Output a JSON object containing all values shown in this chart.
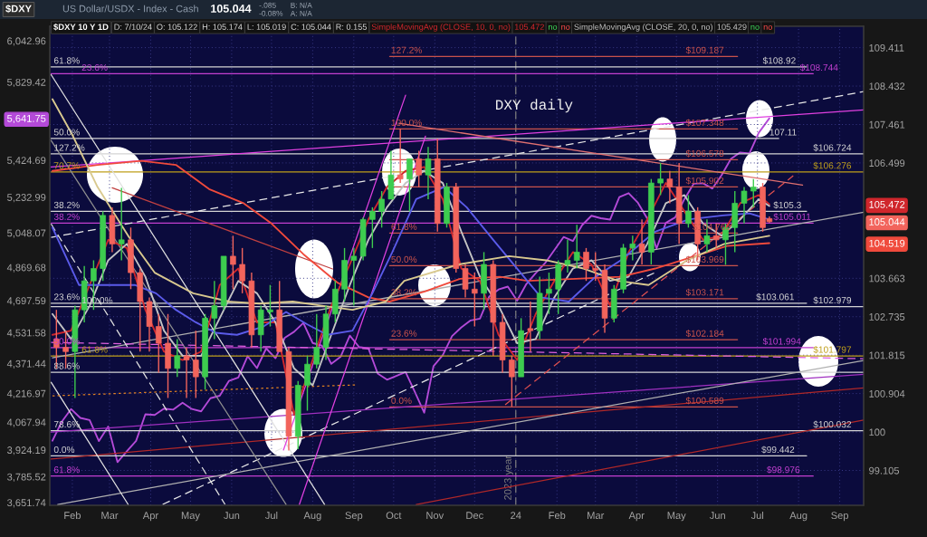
{
  "chart_data": {
    "type": "candlestick",
    "title": "DXY daily",
    "subtitle": "US Dollar/USDX - Index - Cash",
    "x": [
      "2023-01-20",
      "2023-01-27",
      "2023-02-03",
      "2023-02-10",
      "2023-02-17",
      "2023-02-24",
      "2023-03-03",
      "2023-03-10",
      "2023-03-17",
      "2023-03-24",
      "2023-03-31",
      "2023-04-07",
      "2023-04-14",
      "2023-04-21",
      "2023-04-28",
      "2023-05-05",
      "2023-05-12",
      "2023-05-19",
      "2023-05-26",
      "2023-06-02",
      "2023-06-09",
      "2023-06-16",
      "2023-06-23",
      "2023-06-30",
      "2023-07-07",
      "2023-07-14",
      "2023-07-21",
      "2023-07-28",
      "2023-08-04",
      "2023-08-11",
      "2023-08-18",
      "2023-08-25",
      "2023-09-01",
      "2023-09-08",
      "2023-09-15",
      "2023-09-22",
      "2023-09-29",
      "2023-10-06",
      "2023-10-13",
      "2023-10-20",
      "2023-10-27",
      "2023-11-03",
      "2023-11-10",
      "2023-11-17",
      "2023-11-24",
      "2023-12-01",
      "2023-12-08",
      "2023-12-15",
      "2023-12-22",
      "2023-12-29",
      "2024-01-05",
      "2024-01-12",
      "2024-01-19",
      "2024-01-26",
      "2024-02-02",
      "2024-02-09",
      "2024-02-16",
      "2024-02-23",
      "2024-03-01",
      "2024-03-08",
      "2024-03-15",
      "2024-03-22",
      "2024-03-29",
      "2024-04-05",
      "2024-04-12",
      "2024-04-19",
      "2024-04-26",
      "2024-05-03",
      "2024-05-10",
      "2024-05-17",
      "2024-05-24",
      "2024-05-31",
      "2024-06-07",
      "2024-06-14",
      "2024-06-21",
      "2024-06-28",
      "2024-07-05",
      "2024-07-10"
    ],
    "ohlc": [
      [
        102.2,
        102.9,
        101.5,
        102.0
      ],
      [
        102.0,
        102.4,
        101.5,
        101.9
      ],
      [
        101.9,
        103.0,
        100.8,
        102.9
      ],
      [
        102.9,
        103.96,
        102.6,
        103.6
      ],
      [
        103.6,
        104.1,
        102.9,
        103.9
      ],
      [
        103.9,
        105.3,
        103.6,
        105.2
      ],
      [
        105.2,
        105.4,
        104.3,
        104.5
      ],
      [
        104.5,
        105.88,
        104.1,
        104.6
      ],
      [
        104.6,
        104.9,
        103.4,
        103.8
      ],
      [
        103.8,
        103.9,
        101.9,
        103.1
      ],
      [
        103.1,
        103.2,
        101.9,
        102.5
      ],
      [
        102.5,
        102.8,
        101.4,
        102.1
      ],
      [
        102.1,
        102.8,
        100.8,
        101.5
      ],
      [
        101.5,
        102.2,
        101.3,
        101.8
      ],
      [
        101.8,
        102.0,
        100.8,
        101.7
      ],
      [
        101.7,
        102.4,
        100.8,
        101.3
      ],
      [
        101.3,
        102.8,
        101.0,
        102.7
      ],
      [
        102.7,
        103.6,
        102.2,
        103.0
      ],
      [
        103.0,
        104.2,
        102.9,
        104.2
      ],
      [
        104.2,
        104.7,
        103.4,
        104.0
      ],
      [
        104.0,
        104.4,
        103.3,
        103.6
      ],
      [
        103.6,
        103.8,
        102.0,
        102.3
      ],
      [
        102.3,
        103.0,
        101.9,
        102.9
      ],
      [
        102.85,
        103.5,
        102.5,
        102.9
      ],
      [
        102.9,
        103.6,
        101.9,
        101.9
      ],
      [
        101.9,
        102.0,
        99.57,
        99.9
      ],
      [
        99.9,
        101.2,
        99.6,
        101.1
      ],
      [
        101.1,
        101.8,
        100.5,
        101.6
      ],
      [
        101.6,
        102.8,
        101.5,
        102.0
      ],
      [
        102.0,
        103.0,
        101.7,
        102.8
      ],
      [
        102.8,
        103.6,
        102.6,
        103.4
      ],
      [
        103.4,
        104.4,
        103.1,
        104.1
      ],
      [
        104.1,
        104.4,
        103.0,
        104.2
      ],
      [
        104.2,
        105.15,
        104.1,
        105.1
      ],
      [
        105.1,
        105.4,
        104.4,
        105.3
      ],
      [
        105.3,
        105.8,
        104.9,
        105.6
      ],
      [
        105.6,
        106.8,
        105.6,
        106.2
      ],
      [
        106.2,
        107.35,
        106.0,
        106.1
      ],
      [
        106.1,
        106.6,
        105.3,
        106.6
      ],
      [
        106.6,
        106.8,
        105.9,
        106.2
      ],
      [
        106.2,
        106.9,
        105.6,
        106.6
      ],
      [
        106.6,
        107.1,
        104.8,
        105.0
      ],
      [
        105.0,
        106.0,
        104.9,
        105.9
      ],
      [
        105.9,
        106.0,
        103.8,
        103.9
      ],
      [
        103.9,
        104.0,
        103.2,
        103.4
      ],
      [
        103.4,
        103.8,
        102.5,
        103.3
      ],
      [
        103.3,
        104.3,
        102.9,
        104.0
      ],
      [
        104.0,
        104.1,
        101.8,
        102.6
      ],
      [
        102.6,
        102.8,
        101.4,
        101.7
      ],
      [
        101.7,
        101.8,
        100.6,
        101.3
      ],
      [
        101.3,
        102.7,
        101.3,
        102.4
      ],
      [
        102.45,
        103.1,
        101.9,
        102.4
      ],
      [
        102.4,
        103.7,
        102.2,
        103.3
      ],
      [
        103.3,
        103.8,
        102.8,
        103.4
      ],
      [
        103.4,
        104.1,
        102.8,
        104.0
      ],
      [
        104.0,
        104.6,
        103.8,
        104.1
      ],
      [
        104.1,
        104.97,
        103.9,
        104.3
      ],
      [
        104.3,
        104.4,
        103.6,
        103.9
      ],
      [
        103.9,
        104.3,
        103.6,
        103.86
      ],
      [
        103.86,
        104.0,
        102.35,
        102.7
      ],
      [
        102.7,
        103.5,
        102.6,
        103.4
      ],
      [
        103.4,
        104.5,
        103.3,
        104.4
      ],
      [
        104.4,
        104.7,
        104.1,
        104.5
      ],
      [
        104.5,
        105.1,
        104.0,
        104.3
      ],
      [
        104.3,
        106.1,
        104.0,
        106.0
      ],
      [
        106.0,
        106.5,
        105.7,
        106.1
      ],
      [
        106.1,
        106.3,
        105.5,
        105.9
      ],
      [
        105.9,
        106.5,
        104.5,
        105.0
      ],
      [
        105.0,
        105.7,
        104.9,
        105.3
      ],
      [
        105.3,
        105.4,
        104.1,
        104.5
      ],
      [
        104.5,
        105.1,
        104.3,
        104.7
      ],
      [
        104.7,
        105.0,
        104.4,
        104.6
      ],
      [
        104.6,
        105.0,
        103.99,
        104.9
      ],
      [
        104.9,
        105.8,
        104.3,
        105.5
      ],
      [
        105.5,
        105.9,
        105.0,
        105.8
      ],
      [
        105.8,
        106.1,
        105.4,
        105.9
      ],
      [
        105.9,
        106.0,
        104.8,
        104.9
      ],
      [
        105.122,
        105.174,
        105.019,
        105.044
      ]
    ],
    "colors": [
      "#f2645c",
      "#f2645c",
      "#3dcc4f",
      "#3dcc4f",
      "#3dcc4f",
      "#3dcc4f",
      "#f2645c",
      "#3dcc4f",
      "#f2645c",
      "#f2645c",
      "#f2645c",
      "#f2645c",
      "#f2645c",
      "#3dcc4f",
      "#f2645c",
      "#f2645c",
      "#3dcc4f",
      "#3dcc4f",
      "#3dcc4f",
      "#f2645c",
      "#f2645c",
      "#f2645c",
      "#3dcc4f",
      "#3dcc4f",
      "#f2645c",
      "#f2645c",
      "#3dcc4f",
      "#3dcc4f",
      "#3dcc4f",
      "#3dcc4f",
      "#3dcc4f",
      "#3dcc4f",
      "#3dcc4f",
      "#3dcc4f",
      "#3dcc4f",
      "#3dcc4f",
      "#3dcc4f",
      "#f2645c",
      "#3dcc4f",
      "#f2645c",
      "#3dcc4f",
      "#f2645c",
      "#3dcc4f",
      "#f2645c",
      "#f2645c",
      "#f2645c",
      "#3dcc4f",
      "#f2645c",
      "#f2645c",
      "#f2645c",
      "#3dcc4f",
      "#f2645c",
      "#3dcc4f",
      "#3dcc4f",
      "#3dcc4f",
      "#3dcc4f",
      "#3dcc4f",
      "#f2645c",
      "#f2645c",
      "#f2645c",
      "#3dcc4f",
      "#3dcc4f",
      "#3dcc4f",
      "#f2645c",
      "#3dcc4f",
      "#3dcc4f",
      "#f2645c",
      "#f2645c",
      "#3dcc4f",
      "#f2645c",
      "#3dcc4f",
      "#f2645c",
      "#3dcc4f",
      "#3dcc4f",
      "#3dcc4f",
      "#3dcc4f",
      "#f2645c",
      "#f2645c"
    ],
    "series": [
      {
        "type": "line",
        "name": "SimpleMovingAvg (CLOSE, 10, 0, no)",
        "color": "#d0262c",
        "x": [
          "2023-01-17",
          "2023-01-31",
          "2023-02-14",
          "2023-02-28",
          "2023-03-14",
          "2023-03-28",
          "2023-04-11",
          "2023-04-25",
          "2023-05-09",
          "2023-05-23",
          "2023-06-06",
          "2023-06-20",
          "2023-07-04",
          "2023-07-18",
          "2023-08-01",
          "2023-08-15",
          "2023-08-29",
          "2023-09-12",
          "2023-09-26",
          "2023-10-10",
          "2023-10-24",
          "2023-11-07",
          "2023-11-21",
          "2023-12-05",
          "2023-12-19",
          "2024-01-02",
          "2024-01-16",
          "2024-01-30",
          "2024-02-13",
          "2024-02-27",
          "2024-03-12",
          "2024-03-26",
          "2024-04-09",
          "2024-04-23",
          "2024-05-07",
          "2024-05-21",
          "2024-06-04",
          "2024-06-18",
          "2024-07-02",
          "2024-07-10"
        ],
        "values": [
          102.3,
          102.4,
          103.5,
          104.6,
          104.4,
          102.9,
          101.9,
          101.7,
          101.9,
          103.5,
          103.9,
          102.6,
          102.6,
          100.4,
          101.7,
          103.0,
          104.0,
          105.1,
          105.9,
          106.3,
          106.4,
          105.6,
          103.9,
          103.6,
          102.3,
          101.7,
          102.8,
          103.6,
          104.3,
          104.0,
          103.0,
          104.3,
          105.1,
          106.0,
          105.3,
          104.6,
          104.7,
          105.5,
          105.7,
          105.472
        ]
      },
      {
        "type": "line",
        "name": "SimpleMovingAvg (CLOSE, 20, 0, no)",
        "color": "#c4c4c4",
        "x": [
          "2023-01-17",
          "2023-01-31",
          "2023-02-14",
          "2023-02-28",
          "2023-03-14",
          "2023-03-28",
          "2023-04-11",
          "2023-04-25",
          "2023-05-09",
          "2023-05-23",
          "2023-06-06",
          "2023-06-20",
          "2023-07-04",
          "2023-07-18",
          "2023-08-01",
          "2023-08-15",
          "2023-08-29",
          "2023-09-12",
          "2023-09-26",
          "2023-10-10",
          "2023-10-24",
          "2023-11-07",
          "2023-11-21",
          "2023-12-05",
          "2023-12-19",
          "2024-01-02",
          "2024-01-16",
          "2024-01-30",
          "2024-02-13",
          "2024-02-27",
          "2024-03-12",
          "2024-03-26",
          "2024-04-09",
          "2024-04-23",
          "2024-05-07",
          "2024-05-21",
          "2024-06-04",
          "2024-06-18",
          "2024-07-02",
          "2024-07-10"
        ],
        "values": [
          102.8,
          102.2,
          103.0,
          104.1,
          104.5,
          103.7,
          102.4,
          101.8,
          101.8,
          102.7,
          103.6,
          103.3,
          102.6,
          101.5,
          101.1,
          102.3,
          103.5,
          104.6,
          105.4,
          106.0,
          106.3,
          106.0,
          104.8,
          103.7,
          103.0,
          102.1,
          102.2,
          103.2,
          103.9,
          104.1,
          103.6,
          103.7,
          104.5,
          105.5,
          105.7,
          105.0,
          104.7,
          105.1,
          105.6,
          105.429
        ]
      },
      {
        "type": "line",
        "color": "#f04a3c",
        "x": [
          "2023-01-17",
          "2023-02-20",
          "2023-03-25",
          "2023-04-20",
          "2023-05-15",
          "2023-06-10",
          "2023-07-01",
          "2023-07-25",
          "2023-08-20",
          "2023-09-12",
          "2023-09-28",
          "2023-10-25",
          "2023-11-20",
          "2023-12-20",
          "2024-01-10",
          "2024-02-15",
          "2024-03-20",
          "2024-04-15",
          "2024-05-10",
          "2024-06-08",
          "2024-07-10"
        ],
        "values": [
          106.3,
          106.45,
          106.55,
          106.45,
          105.85,
          105.5,
          105.0,
          104.25,
          103.55,
          103.2,
          103.1,
          103.35,
          103.65,
          103.7,
          103.6,
          103.65,
          103.7,
          103.9,
          104.15,
          104.45,
          104.519
        ]
      },
      {
        "type": "line",
        "color": "#5b5bea",
        "x": [
          "2023-01-17",
          "2023-02-06",
          "2023-03-01",
          "2023-03-20",
          "2023-04-05",
          "2023-04-20",
          "2023-05-05",
          "2023-05-20",
          "2023-06-05",
          "2023-06-25",
          "2023-07-12",
          "2023-07-28",
          "2023-08-12",
          "2023-08-31",
          "2023-09-15",
          "2023-09-30",
          "2023-10-18",
          "2023-11-08",
          "2023-11-25",
          "2023-12-15",
          "2024-01-02",
          "2024-01-20",
          "2024-02-10",
          "2024-03-01",
          "2024-03-20",
          "2024-04-15",
          "2024-05-10",
          "2024-06-05",
          "2024-06-25",
          "2024-07-10"
        ],
        "values": [
          104.9,
          103.5,
          103.5,
          103.5,
          103.3,
          102.9,
          102.6,
          102.35,
          102.3,
          102.5,
          102.85,
          102.55,
          102.3,
          102.4,
          103.3,
          104.3,
          105.6,
          105.9,
          105.4,
          104.6,
          103.9,
          103.2,
          103.1,
          103.7,
          104.1,
          104.8,
          105.1,
          105.2,
          105.25,
          105.1
        ]
      },
      {
        "type": "line",
        "color": "#d9c98f",
        "x": [
          "2023-01-17",
          "2023-02-01",
          "2023-02-20",
          "2023-03-15",
          "2023-04-04",
          "2023-05-03",
          "2023-05-30",
          "2023-06-22",
          "2023-07-17",
          "2023-08-08",
          "2023-08-31",
          "2023-09-25",
          "2023-10-09",
          "2023-11-19",
          "2023-12-27",
          "2024-01-24",
          "2024-02-21",
          "2024-03-18",
          "2024-04-10",
          "2024-05-09",
          "2024-06-06",
          "2024-07-10"
        ],
        "values": [
          108.1,
          107.2,
          105.9,
          104.7,
          103.8,
          103.3,
          103.1,
          103.05,
          103.1,
          103.0,
          102.9,
          103.1,
          103.6,
          104.0,
          104.2,
          104.1,
          103.9,
          103.6,
          103.5,
          104.1,
          104.5,
          104.7
        ]
      },
      {
        "type": "line",
        "axis": "y2",
        "color": "#b44ad8",
        "x": [
          "2023-01-17",
          "2023-01-24",
          "2023-01-31",
          "2023-02-07",
          "2023-02-14",
          "2023-02-21",
          "2023-02-28",
          "2023-03-07",
          "2023-03-14",
          "2023-03-21",
          "2023-03-28",
          "2023-04-04",
          "2023-04-11",
          "2023-04-18",
          "2023-04-25",
          "2023-05-02",
          "2023-05-09",
          "2023-05-16",
          "2023-05-23",
          "2023-05-30",
          "2023-06-06",
          "2023-06-13",
          "2023-06-20",
          "2023-06-27",
          "2023-07-04",
          "2023-07-11",
          "2023-07-18",
          "2023-07-25",
          "2023-08-01",
          "2023-08-08",
          "2023-08-15",
          "2023-08-22",
          "2023-08-29",
          "2023-09-05",
          "2023-09-12",
          "2023-09-19",
          "2023-09-26",
          "2023-10-03",
          "2023-10-10",
          "2023-10-17",
          "2023-10-24",
          "2023-10-31",
          "2023-11-07",
          "2023-11-14",
          "2023-11-21",
          "2023-11-28",
          "2023-12-05",
          "2023-12-12",
          "2023-12-19",
          "2023-12-26",
          "2024-01-02",
          "2024-01-09",
          "2024-01-16",
          "2024-01-23",
          "2024-01-30",
          "2024-02-06",
          "2024-02-13",
          "2024-02-20",
          "2024-02-27",
          "2024-03-05",
          "2024-03-12",
          "2024-03-19",
          "2024-03-26",
          "2024-04-02",
          "2024-04-09",
          "2024-04-16",
          "2024-04-23",
          "2024-04-30",
          "2024-05-07",
          "2024-05-14",
          "2024-05-21",
          "2024-05-28",
          "2024-06-04",
          "2024-06-11",
          "2024-06-18",
          "2024-06-25",
          "2024-07-02",
          "2024-07-10"
        ],
        "values": [
          3972,
          4070,
          4136,
          4090,
          4079,
          3970,
          4045,
          3861,
          3917,
          3971,
          4109,
          4105,
          4138,
          4133,
          4169,
          4136,
          4124,
          4192,
          4205,
          4282,
          4299,
          4410,
          4348,
          4450,
          4399,
          4505,
          4536,
          4582,
          4478,
          4464,
          4370,
          4406,
          4516,
          4457,
          4450,
          4320,
          4288,
          4308,
          4327,
          4224,
          4117,
          4358,
          4415,
          4514,
          4559,
          4595,
          4604,
          4719,
          4755,
          4770,
          4697,
          4784,
          4840,
          4891,
          4959,
          5027,
          5006,
          5089,
          5137,
          5124,
          5117,
          5234,
          5254,
          5204,
          5123,
          4967,
          5100,
          5128,
          5223,
          5303,
          5305,
          5278,
          5347,
          5431,
          5465,
          5460,
          5567,
          5641.75
        ]
      },
      {
        "type": "line",
        "color": "#d4d4d4",
        "x": [
          "2023-01-16",
          "2024-08-07"
        ],
        "values": [
          108.92,
          108.92
        ]
      },
      {
        "type": "line",
        "color": "#d4d4d4",
        "x": [
          "2023-01-16",
          "2024-07-17"
        ],
        "values": [
          107.11,
          107.11
        ]
      },
      {
        "type": "line",
        "color": "#d4d4d4",
        "x": [
          "2023-01-16",
          "2024-09-19"
        ],
        "values": [
          106.724,
          106.724
        ]
      },
      {
        "type": "line",
        "color": "#d4d4d4",
        "x": [
          "2023-01-16",
          "2024-08-07"
        ],
        "values": [
          105.3,
          105.3
        ]
      },
      {
        "type": "line",
        "color": "#d4d4d4",
        "x": [
          "2023-01-16",
          "2024-08-07"
        ],
        "values": [
          103.061,
          103.061
        ]
      },
      {
        "type": "line",
        "color": "#d4d4d4",
        "x": [
          "2023-01-16",
          "2024-09-19"
        ],
        "values": [
          102.979,
          102.979
        ]
      },
      {
        "type": "line",
        "color": "#d4d4d4",
        "x": [
          "2023-01-16",
          "2024-09-19"
        ],
        "values": [
          101.409,
          101.409
        ]
      },
      {
        "type": "line",
        "color": "#d4d4d4",
        "x": [
          "2023-01-16",
          "2024-09-19"
        ],
        "values": [
          100.032,
          100.032
        ]
      },
      {
        "type": "line",
        "color": "#d4d4d4",
        "x": [
          "2023-01-16",
          "2024-08-07"
        ],
        "values": [
          99.442,
          99.442
        ]
      },
      {
        "type": "line",
        "color": "#c23fd0",
        "x": [
          "2023-01-16",
          "2024-08-12"
        ],
        "values": [
          108.744,
          108.744
        ]
      },
      {
        "type": "line",
        "color": "#c23fd0",
        "x": [
          "2023-01-16",
          "2024-08-12"
        ],
        "values": [
          105.011,
          105.011
        ]
      },
      {
        "type": "line",
        "color": "#c23fd0",
        "x": [
          "2023-01-16",
          "2024-08-12"
        ],
        "values": [
          101.994,
          101.994
        ]
      },
      {
        "type": "line",
        "color": "#c23fd0",
        "x": [
          "2023-01-16",
          "2024-08-12"
        ],
        "values": [
          98.976,
          98.976
        ]
      },
      {
        "type": "line",
        "color": "#bf9f1a",
        "x": [
          "2023-01-16",
          "2024-09-19"
        ],
        "values": [
          106.276,
          106.276
        ]
      },
      {
        "type": "line",
        "color": "#bf9f1a",
        "x": [
          "2023-01-16",
          "2024-09-19"
        ],
        "values": [
          101.797,
          101.797
        ]
      },
      {
        "type": "line",
        "color": "#c9524b",
        "x": [
          "2023-09-28",
          "2024-06-16"
        ],
        "values": [
          109.187,
          109.187
        ]
      },
      {
        "type": "line",
        "color": "#c9524b",
        "x": [
          "2023-09-28",
          "2024-06-16"
        ],
        "values": [
          107.348,
          107.348
        ]
      },
      {
        "type": "line",
        "color": "#c9524b",
        "x": [
          "2023-09-28",
          "2024-06-16"
        ],
        "values": [
          106.578,
          106.578
        ]
      },
      {
        "type": "line",
        "color": "#c9524b",
        "x": [
          "2023-09-28",
          "2024-06-16"
        ],
        "values": [
          105.902,
          105.902
        ]
      },
      {
        "type": "line",
        "color": "#c9524b",
        "x": [
          "2023-09-28",
          "2024-06-16"
        ],
        "values": [
          104.766,
          104.766
        ]
      },
      {
        "type": "line",
        "color": "#c9524b",
        "x": [
          "2023-09-28",
          "2024-06-16"
        ],
        "values": [
          103.969,
          103.969
        ]
      },
      {
        "type": "line",
        "color": "#c9524b",
        "x": [
          "2023-09-28",
          "2024-06-16"
        ],
        "values": [
          103.171,
          103.171
        ]
      },
      {
        "type": "line",
        "color": "#c9524b",
        "x": [
          "2023-09-28",
          "2024-06-16"
        ],
        "values": [
          102.184,
          102.184
        ]
      },
      {
        "type": "line",
        "color": "#c9524b",
        "x": [
          "2023-09-28",
          "2024-06-16"
        ],
        "values": [
          100.589,
          100.589
        ]
      },
      {
        "type": "line",
        "color": "#e8e8e8",
        "line_style": "dashed",
        "x": [
          "2023-01-16",
          "2024-09-19"
        ],
        "values": [
          104.66,
          108.29
        ]
      },
      {
        "type": "line",
        "color": "#e8e8e8",
        "line_style": "dashed",
        "x": [
          "2023-04-10",
          "2024-04-16"
        ],
        "values": [
          98.32,
          103.82
        ]
      },
      {
        "type": "line",
        "color": "#e05050",
        "line_style": "dashed",
        "x": [
          "2023-12-24",
          "2024-07-28"
        ],
        "values": [
          100.64,
          106.18
        ]
      },
      {
        "type": "line",
        "color": "#e040e0",
        "x": [
          "2023-01-16",
          "2024-09-19"
        ],
        "values": [
          106.4,
          107.83
        ]
      },
      {
        "type": "line",
        "color": "#a030c0",
        "x": [
          "2023-01-16",
          "2024-09-19"
        ],
        "values": [
          100.0,
          101.36
        ]
      },
      {
        "type": "line",
        "color": "#b02828",
        "x": [
          "2023-01-16",
          "2024-09-19"
        ],
        "values": [
          99.37,
          101.04
        ]
      },
      {
        "type": "line",
        "color": "#b02828",
        "x": [
          "2023-10-18",
          "2024-09-19"
        ],
        "values": [
          98.32,
          100.28
        ]
      },
      {
        "type": "line",
        "color": "#b0b0b0",
        "x": [
          "2023-01-21",
          "2024-09-19"
        ],
        "values": [
          98.32,
          101.69
        ]
      },
      {
        "type": "line",
        "color": "#b0b0b0",
        "x": [
          "2023-01-17",
          "2024-09-19"
        ],
        "values": [
          101.75,
          105.28
        ]
      },
      {
        "type": "line",
        "color": "#e0e0e0",
        "x": [
          "2023-01-16",
          "2023-08-10"
        ],
        "values": [
          108.72,
          98.32
        ]
      },
      {
        "type": "line",
        "color": "#e0e0e0",
        "x": [
          "2023-01-16",
          "2023-03-15"
        ],
        "values": [
          101.17,
          98.32
        ]
      },
      {
        "type": "line",
        "color": "#e0e0e0",
        "line_style": "dashed",
        "x": [
          "2023-01-16",
          "2023-05-27"
        ],
        "values": [
          104.99,
          98.32
        ]
      },
      {
        "type": "line",
        "color": "#909090",
        "x": [
          "2023-01-16",
          "2023-07-12"
        ],
        "values": [
          107.06,
          98.32
        ]
      },
      {
        "type": "line",
        "color": "#c04040",
        "x": [
          "2023-03-03",
          "2023-08-16"
        ],
        "values": [
          105.88,
          103.89
        ]
      },
      {
        "type": "line",
        "color": "#e07070",
        "x": [
          "2023-10-05",
          "2024-08-04"
        ],
        "values": [
          107.49,
          105.95
        ]
      },
      {
        "type": "line",
        "color": "#e040e0",
        "x": [
          "2023-07-10",
          "2023-10-10"
        ],
        "values": [
          99.58,
          108.2
        ]
      },
      {
        "type": "line",
        "color": "#e040e0",
        "x": [
          "2023-07-22",
          "2023-10-25"
        ],
        "values": [
          98.32,
          107.17
        ]
      },
      {
        "type": "line",
        "color": "#e08020",
        "line_style": "dotted",
        "x": [
          "2023-01-17",
          "2023-09-03"
        ],
        "values": [
          100.85,
          101.11
        ]
      },
      {
        "type": "line",
        "color": "#e060e0",
        "line_style": "dashed",
        "x": [
          "2023-01-16",
          "2024-09-19"
        ],
        "values": [
          102.12,
          101.73
        ]
      }
    ],
    "annotations": [
      "$DXY",
      "105.044",
      "-.085",
      "-0.08%",
      "B: N/A",
      "A: N/A",
      "$DXY 10 Y 1D",
      "D: 7/10/24",
      "O: 105.122",
      "H: 105.174",
      "L: 105.019",
      "C: 105.044",
      "R: 0.155",
      "105.472",
      "no",
      "no",
      "105.429",
      "no",
      "no",
      {
        "text": "61.8%",
        "x": "2023-01-18",
        "y": 108.92
      },
      {
        "text": "23.6%",
        "x": "2023-02-08",
        "y": 108.744
      },
      {
        "text": "50.0%",
        "x": "2023-01-18",
        "y": 107.11
      },
      {
        "text": "127.2%",
        "x": "2023-01-18",
        "y": 106.724
      },
      {
        "text": "70.7%",
        "x": "2023-01-18",
        "y": 106.276
      },
      {
        "text": "38.2%",
        "x": "2023-01-18",
        "y": 105.3
      },
      {
        "text": "38.2%",
        "x": "2023-01-18",
        "y": 105.011
      },
      {
        "text": "23.6%",
        "x": "2023-01-18",
        "y": 103.061
      },
      {
        "text": "100.0%",
        "x": "2023-02-08",
        "y": 102.979
      },
      {
        "text": "50.0%",
        "x": "2023-01-18",
        "y": 101.994
      },
      {
        "text": "61.8%",
        "x": "2023-02-08",
        "y": 101.797
      },
      {
        "text": "88.6%",
        "x": "2023-01-18",
        "y": 101.409
      },
      {
        "text": "78.6%",
        "x": "2023-01-18",
        "y": 100.032
      },
      {
        "text": "0.0%",
        "x": "2023-01-18",
        "y": 99.442
      },
      {
        "text": "61.8%",
        "x": "2023-01-18",
        "y": 98.976
      },
      {
        "text": "$108.92",
        "x": "2024-07-05",
        "y": 108.92
      },
      {
        "text": "$108.744",
        "x": "2024-08-02",
        "y": 108.744
      },
      {
        "text": "107.11",
        "x": "2024-07-10",
        "y": 107.11
      },
      {
        "text": "$106.724",
        "x": "2024-08-12",
        "y": 106.724
      },
      {
        "text": "$106.276",
        "x": "2024-08-12",
        "y": 106.276
      },
      {
        "text": "$105.3",
        "x": "2024-07-13",
        "y": 105.3
      },
      {
        "text": "$105.011",
        "x": "2024-07-13",
        "y": 105.011
      },
      {
        "text": "$103.061",
        "x": "2024-06-30",
        "y": 103.061
      },
      {
        "text": "$102.979",
        "x": "2024-08-12",
        "y": 102.979
      },
      {
        "text": "$101.994",
        "x": "2024-07-05",
        "y": 101.994
      },
      {
        "text": "$101.797",
        "x": "2024-08-12",
        "y": 101.797
      },
      {
        "text": "$100.032",
        "x": "2024-08-12",
        "y": 100.032
      },
      {
        "text": "$99.442",
        "x": "2024-07-04",
        "y": 99.442
      },
      {
        "text": "$98.976",
        "x": "2024-07-08",
        "y": 98.976
      },
      {
        "text": "127.2%",
        "x": "2023-09-29",
        "y": 109.187
      },
      {
        "text": "100.0%",
        "x": "2023-09-29",
        "y": 107.348
      },
      {
        "text": "61.8%",
        "x": "2023-09-29",
        "y": 104.766
      },
      {
        "text": "50.0%",
        "x": "2023-09-29",
        "y": 103.969
      },
      {
        "text": "38.2%",
        "x": "2023-09-29",
        "y": 103.171
      },
      {
        "text": "23.6%",
        "x": "2023-09-29",
        "y": 102.184
      },
      {
        "text": "0.0%",
        "x": "2023-09-29",
        "y": 100.589
      },
      {
        "text": "$109.187",
        "x": "2024-05-08",
        "y": 109.187
      },
      {
        "text": "$107.348",
        "x": "2024-05-08",
        "y": 107.348
      },
      {
        "text": "$106.578",
        "x": "2024-05-08",
        "y": 106.578
      },
      {
        "text": "$105.902",
        "x": "2024-05-08",
        "y": 105.902
      },
      {
        "text": "$104.766",
        "x": "2024-05-13",
        "y": 104.766
      },
      {
        "text": "$103.969",
        "x": "2024-05-08",
        "y": 103.969
      },
      {
        "text": "$103.171",
        "x": "2024-05-08",
        "y": 103.171
      },
      {
        "text": "$102.184",
        "x": "2024-05-08",
        "y": 102.184
      },
      {
        "text": "$100.589",
        "x": "2024-05-08",
        "y": 100.589
      }
    ],
    "ref_lines": [
      {
        "axis": "x",
        "value": "2024-01-01",
        "label": "2023 year",
        "color": "#7c7c7c",
        "line_style": "dashed"
      }
    ],
    "xlim": [
      "2023-01-15",
      "2024-09-19"
    ],
    "xticks": [
      {
        "value": "2023-02-01",
        "label": "Feb"
      },
      {
        "value": "2023-03-01",
        "label": "Mar"
      },
      {
        "value": "2023-04-01",
        "label": "Apr"
      },
      {
        "value": "2023-05-01",
        "label": "May"
      },
      {
        "value": "2023-06-01",
        "label": "Jun"
      },
      {
        "value": "2023-07-01",
        "label": "Jul"
      },
      {
        "value": "2023-08-01",
        "label": "Aug"
      },
      {
        "value": "2023-09-01",
        "label": "Sep"
      },
      {
        "value": "2023-10-01",
        "label": "Oct"
      },
      {
        "value": "2023-11-01",
        "label": "Nov"
      },
      {
        "value": "2023-12-01",
        "label": "Dec"
      },
      {
        "value": "2024-01-01",
        "label": "24"
      },
      {
        "value": "2024-02-01",
        "label": "Feb"
      },
      {
        "value": "2024-03-01",
        "label": "Mar"
      },
      {
        "value": "2024-04-01",
        "label": "Apr"
      },
      {
        "value": "2024-05-01",
        "label": "May"
      },
      {
        "value": "2024-06-01",
        "label": "Jun"
      },
      {
        "value": "2024-07-01",
        "label": "Jul"
      },
      {
        "value": "2024-08-01",
        "label": "Aug"
      },
      {
        "value": "2024-09-01",
        "label": "Sep"
      }
    ],
    "ylim": [
      98.3,
      109.96
    ],
    "yticks": [
      99.105,
      100,
      100.904,
      101.815,
      102.735,
      103.663,
      104.519,
      105.044,
      105.472,
      106.499,
      107.461,
      108.432,
      109.411
    ],
    "y2lim": [
      3637.4,
      6118.4
    ],
    "y2ticks": [
      {
        "value": 3651.74,
        "label": "3,651.74"
      },
      {
        "value": 3785.52,
        "label": "3,785.52"
      },
      {
        "value": 3924.19,
        "label": "3,924.19"
      },
      {
        "value": 4067.94,
        "label": "4,067.94"
      },
      {
        "value": 4216.97,
        "label": "4,216.97"
      },
      {
        "value": 4371.44,
        "label": "4,371.44"
      },
      {
        "value": 4531.58,
        "label": "4,531.58"
      },
      {
        "value": 4697.59,
        "label": "4,697.59"
      },
      {
        "value": 4869.68,
        "label": "4,869.68"
      },
      {
        "value": 5048.07,
        "label": "5,048.07"
      },
      {
        "value": 5232.99,
        "label": "5,232.99"
      },
      {
        "value": 5424.69,
        "label": "5,424.69"
      },
      {
        "value": 5641.75,
        "label": "5,641.75"
      },
      {
        "value": 5829.42,
        "label": "5,829.42"
      },
      {
        "value": 6042.96,
        "label": "6,042.96"
      }
    ],
    "log": "y",
    "grid": true,
    "legend": "top"
  }
}
